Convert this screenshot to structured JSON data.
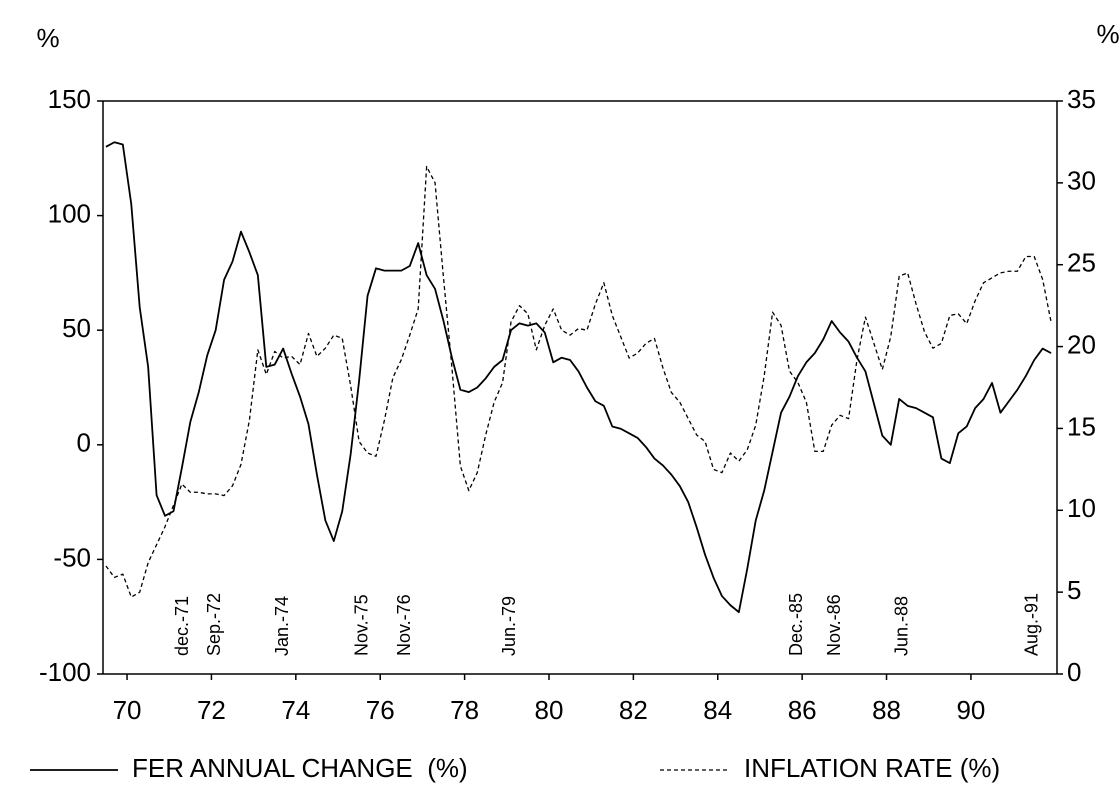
{
  "chart_data": {
    "type": "line",
    "ylabel": "%",
    "y2label": "%",
    "x": [
      69.5,
      69.7,
      69.9,
      70.1,
      70.3,
      70.5,
      70.7,
      70.9,
      71.1,
      71.3,
      71.5,
      71.7,
      71.9,
      72.1,
      72.3,
      72.5,
      72.7,
      72.9,
      73.1,
      73.3,
      73.5,
      73.7,
      73.9,
      74.1,
      74.3,
      74.5,
      74.7,
      74.9,
      75.1,
      75.3,
      75.5,
      75.7,
      75.9,
      76.1,
      76.3,
      76.5,
      76.7,
      76.9,
      77.1,
      77.3,
      77.5,
      77.7,
      77.9,
      78.1,
      78.3,
      78.5,
      78.7,
      78.9,
      79.1,
      79.3,
      79.5,
      79.7,
      79.9,
      80.1,
      80.3,
      80.5,
      80.7,
      80.9,
      81.1,
      81.3,
      81.5,
      81.7,
      81.9,
      82.1,
      82.3,
      82.5,
      82.7,
      82.9,
      83.1,
      83.3,
      83.5,
      83.7,
      83.9,
      84.1,
      84.3,
      84.5,
      84.7,
      84.9,
      85.1,
      85.3,
      85.5,
      85.7,
      85.9,
      86.1,
      86.3,
      86.5,
      86.7,
      86.9,
      87.1,
      87.3,
      87.5,
      87.7,
      87.9,
      88.1,
      88.3,
      88.5,
      88.7,
      88.9,
      89.1,
      89.3,
      89.5,
      89.7,
      89.9,
      90.1,
      90.3,
      90.5,
      90.7,
      90.9,
      91.1,
      91.3,
      91.5,
      91.7,
      91.9
    ],
    "series": [
      {
        "name": "FER ANNUAL CHANGE  (%)",
        "color": "#000000",
        "style": "solid",
        "values": [
          130,
          132,
          131,
          105,
          60,
          34,
          -22,
          -31,
          -29,
          -10,
          10,
          23,
          39,
          50,
          72,
          80,
          93,
          84,
          74,
          34,
          35,
          42,
          31,
          21,
          9,
          -13,
          -33,
          -42,
          -29,
          -4,
          28,
          65,
          77,
          76,
          76,
          76,
          78,
          88,
          74,
          68,
          54,
          38,
          24,
          23,
          25,
          29,
          34,
          37,
          50,
          53,
          52,
          53,
          49,
          36,
          38,
          37,
          32,
          25,
          19,
          17,
          8,
          7,
          5,
          3,
          -1,
          -6,
          -9,
          -13,
          -18,
          -25,
          -36,
          -48,
          -58,
          -66,
          -70,
          -73,
          -54,
          -33,
          -20,
          -3,
          14,
          21,
          30,
          36,
          40,
          46,
          54,
          49,
          45,
          38,
          32,
          18,
          4,
          0,
          20,
          17,
          16,
          14,
          12,
          -6,
          -8,
          5,
          8,
          16,
          20,
          27,
          14,
          19,
          24,
          30,
          37,
          42,
          40
        ]
      },
      {
        "name": "INFLATION RATE (%)",
        "color": "#000000",
        "style": "dashed",
        "axis": "y2",
        "values": [
          6.6,
          5.9,
          6.1,
          4.7,
          5.0,
          6.8,
          7.9,
          9.0,
          10.3,
          11.6,
          11.1,
          11.1,
          11.0,
          11.0,
          10.9,
          11.5,
          12.8,
          15.5,
          19.8,
          18.3,
          19.7,
          19.3,
          19.4,
          18.9,
          20.8,
          19.4,
          19.9,
          20.7,
          20.5,
          17.6,
          14.2,
          13.5,
          13.3,
          15.5,
          18.1,
          19.2,
          20.7,
          22.3,
          31.0,
          30.0,
          24.2,
          18.7,
          12.7,
          11.2,
          12.3,
          14.6,
          16.6,
          17.8,
          21.5,
          22.5,
          22.0,
          19.8,
          21.3,
          22.3,
          21.0,
          20.7,
          21.1,
          21.0,
          22.6,
          23.9,
          21.9,
          20.6,
          19.3,
          19.6,
          20.2,
          20.5,
          18.7,
          17.2,
          16.6,
          15.6,
          14.6,
          14.2,
          12.5,
          12.3,
          13.5,
          13.0,
          13.7,
          15.2,
          18.2,
          22.1,
          21.3,
          18.5,
          17.8,
          16.6,
          13.6,
          13.6,
          15.2,
          15.8,
          15.6,
          19.2,
          21.8,
          20.2,
          18.6,
          20.6,
          24.3,
          24.5,
          22.6,
          20.9,
          19.9,
          20.2,
          21.9,
          22.0,
          21.4,
          22.8,
          23.9,
          24.2,
          24.5,
          24.6,
          24.6,
          25.5,
          25.5,
          24.1,
          21.5
        ]
      }
    ],
    "xlim": [
      69.43,
      92.04
    ],
    "xticks": [
      70,
      72,
      74,
      76,
      78,
      80,
      82,
      84,
      86,
      88,
      90
    ],
    "ylim": [
      -100,
      150
    ],
    "yticks": [
      -100,
      -50,
      0,
      50,
      100,
      150
    ],
    "y2lim": [
      0,
      35
    ],
    "y2ticks": [
      0,
      5,
      10,
      15,
      20,
      25,
      30,
      35
    ],
    "annotations": [
      {
        "text": "dec.-71",
        "x": 71.33
      },
      {
        "text": "Sep.-72",
        "x": 72.09
      },
      {
        "text": "Jan.-74",
        "x": 73.7
      },
      {
        "text": "Nov.-75",
        "x": 75.59
      },
      {
        "text": "Nov.-76",
        "x": 76.59
      },
      {
        "text": "Jun.-79",
        "x": 79.08
      },
      {
        "text": "Dec.-85",
        "x": 85.88
      },
      {
        "text": "Nov.-86",
        "x": 86.78
      },
      {
        "text": "Jun.-88",
        "x": 88.39
      },
      {
        "text": "Aug.-91",
        "x": 91.47
      }
    ],
    "legend": "bottom"
  }
}
